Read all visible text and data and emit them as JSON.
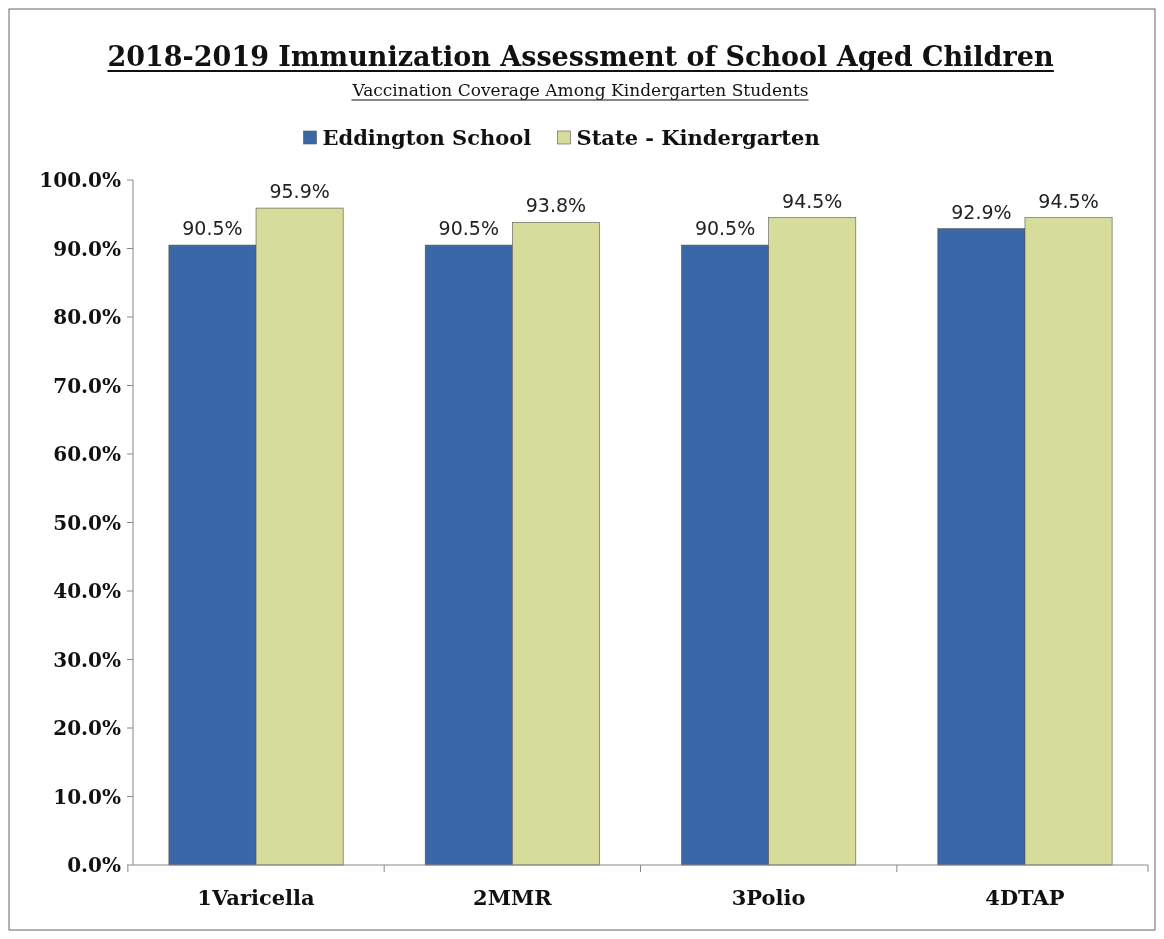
{
  "chart_data": {
    "type": "bar",
    "title": "2018-2019 Immunization Assessment of School Aged Children",
    "subtitle": "Vaccination Coverage Among Kindergarten Students",
    "categories": [
      "1Varicella",
      "2MMR",
      "3Polio",
      "4DTAP"
    ],
    "series": [
      {
        "name": "Eddington School",
        "color": "#3a67a8",
        "values": [
          90.5,
          90.5,
          90.5,
          92.9
        ],
        "value_labels": [
          "90.5%",
          "90.5%",
          "90.5%",
          "92.9%"
        ]
      },
      {
        "name": "State - Kindergarten",
        "color": "#d6dc9a",
        "values": [
          95.9,
          93.8,
          94.5,
          94.5
        ],
        "value_labels": [
          "95.9%",
          "93.8%",
          "94.5%",
          "94.5%"
        ]
      }
    ],
    "ylim": [
      0,
      100
    ],
    "yticks": [
      {
        "value": 0,
        "label": "0.0%"
      },
      {
        "value": 10,
        "label": "10.0%"
      },
      {
        "value": 20,
        "label": "20.0%"
      },
      {
        "value": 30,
        "label": "30.0%"
      },
      {
        "value": 40,
        "label": "40.0%"
      },
      {
        "value": 50,
        "label": "50.0%"
      },
      {
        "value": 60,
        "label": "60.0%"
      },
      {
        "value": 70,
        "label": "70.0%"
      },
      {
        "value": 80,
        "label": "80.0%"
      },
      {
        "value": 90,
        "label": "90.0%"
      },
      {
        "value": 100,
        "label": "100.0%"
      }
    ],
    "grid": false,
    "legend": "top"
  }
}
